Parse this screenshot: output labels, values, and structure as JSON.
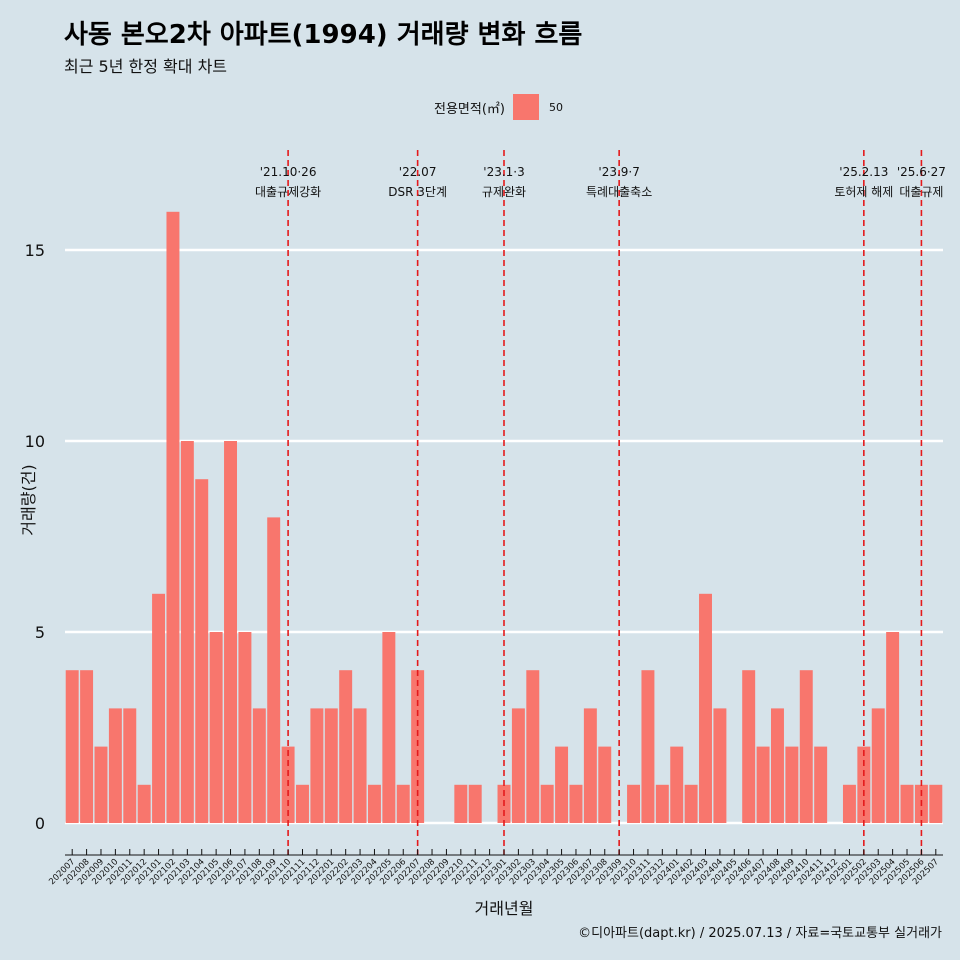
{
  "title": "사동 본오2차 아파트(1994) 거래량 변화 흐름",
  "subtitle": "최근 5년 한정 확대 차트",
  "legend": {
    "title": "전용면적(㎡)",
    "label": "50",
    "color": "#f8766d"
  },
  "caption": "©디아파트(dapt.kr) / 2025.07.13 / 자료=국토교통부 실거래가",
  "colors": {
    "background": "#d6e3ea",
    "bar": "#f8766d",
    "event_line": "#e41a1c",
    "grid": "#ffffff"
  },
  "chart_data": {
    "type": "bar",
    "xlabel": "거래년월",
    "ylabel": "거래량(건)",
    "ylim": [
      0,
      16
    ],
    "yticks": [
      0,
      5,
      10,
      15
    ],
    "grid": true,
    "legend_position": "top",
    "categories": [
      "202007",
      "202008",
      "202009",
      "202010",
      "202011",
      "202012",
      "202101",
      "202102",
      "202103",
      "202104",
      "202105",
      "202106",
      "202107",
      "202108",
      "202109",
      "202110",
      "202111",
      "202112",
      "202201",
      "202202",
      "202203",
      "202204",
      "202205",
      "202206",
      "202207",
      "202208",
      "202209",
      "202210",
      "202211",
      "202212",
      "202301",
      "202302",
      "202303",
      "202304",
      "202305",
      "202306",
      "202307",
      "202308",
      "202309",
      "202310",
      "202311",
      "202312",
      "202401",
      "202402",
      "202403",
      "202404",
      "202405",
      "202406",
      "202407",
      "202408",
      "202409",
      "202410",
      "202411",
      "202412",
      "202501",
      "202502",
      "202503",
      "202504",
      "202505",
      "202506",
      "202507"
    ],
    "series": [
      {
        "name": "50",
        "values": [
          4,
          4,
          2,
          3,
          3,
          1,
          6,
          16,
          10,
          9,
          5,
          10,
          5,
          3,
          8,
          2,
          1,
          3,
          3,
          4,
          3,
          1,
          5,
          1,
          4,
          0,
          0,
          1,
          1,
          0,
          1,
          3,
          4,
          1,
          2,
          1,
          3,
          2,
          0,
          1,
          4,
          1,
          2,
          1,
          6,
          3,
          0,
          4,
          2,
          3,
          2,
          4,
          2,
          0,
          1,
          2,
          3,
          5,
          1,
          1,
          1
        ]
      }
    ],
    "annotations": [
      {
        "x": "202110",
        "date": "'21.10·26",
        "label": "대출규제강화"
      },
      {
        "x": "202207",
        "date": "'22.07",
        "label": "DSR 3단계"
      },
      {
        "x": "202301",
        "date": "'23.1·3",
        "label": "규제완화"
      },
      {
        "x": "202309",
        "date": "'23.9·7",
        "label": "특례대출축소"
      },
      {
        "x": "202502",
        "date": "'25.2.13",
        "label": "토허제 해제"
      },
      {
        "x": "202506",
        "date": "'25.6·27",
        "label": "대출규제"
      }
    ]
  }
}
